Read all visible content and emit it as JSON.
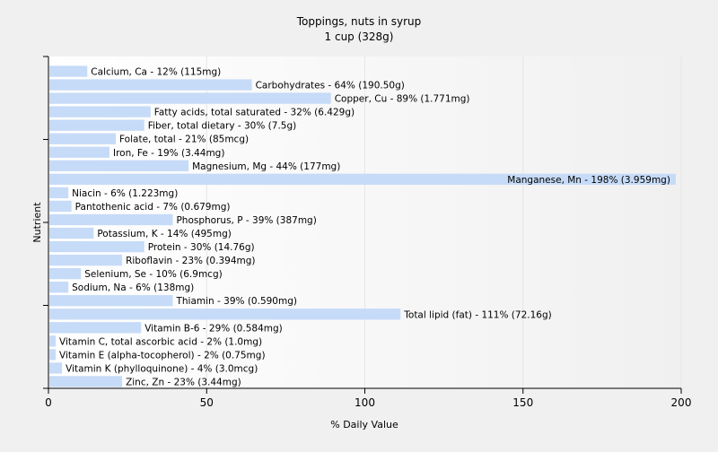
{
  "colors": {
    "page_background": "#f0f0f0",
    "plot_background": "#ffffff",
    "bar": "#c6dbf7",
    "axis": "#000000",
    "grid": "#e6e6e6"
  },
  "chart_data": {
    "type": "bar",
    "orientation": "horizontal",
    "title": "Toppings, nuts in syrup",
    "subtitle": "1 cup (328g)",
    "xlabel": "% Daily Value",
    "ylabel": "Nutrient",
    "xlim": [
      0,
      200
    ],
    "xticks": [
      0,
      50,
      100,
      150,
      200
    ],
    "grid": "vertical-gradient",
    "categories": [
      "Calcium, Ca",
      "Carbohydrates",
      "Copper, Cu",
      "Fatty acids, total saturated",
      "Fiber, total dietary",
      "Folate, total",
      "Iron, Fe",
      "Magnesium, Mg",
      "Manganese, Mn",
      "Niacin",
      "Pantothenic acid",
      "Phosphorus, P",
      "Potassium, K",
      "Protein",
      "Riboflavin",
      "Selenium, Se",
      "Sodium, Na",
      "Thiamin",
      "Total lipid (fat)",
      "Vitamin B-6",
      "Vitamin C, total ascorbic acid",
      "Vitamin E (alpha-tocopherol)",
      "Vitamin K (phylloquinone)",
      "Zinc, Zn"
    ],
    "values": [
      12,
      64,
      89,
      32,
      30,
      21,
      19,
      44,
      198,
      6,
      7,
      39,
      14,
      30,
      23,
      10,
      6,
      39,
      111,
      29,
      2,
      2,
      4,
      23
    ],
    "labels": [
      "Calcium, Ca - 12% (115mg)",
      "Carbohydrates - 64% (190.50g)",
      "Copper, Cu - 89% (1.771mg)",
      "Fatty acids, total saturated - 32% (6.429g)",
      "Fiber, total dietary - 30% (7.5g)",
      "Folate, total - 21% (85mcg)",
      "Iron, Fe - 19% (3.44mg)",
      "Magnesium, Mg - 44% (177mg)",
      "Manganese, Mn - 198% (3.959mg)",
      "Niacin - 6% (1.223mg)",
      "Pantothenic acid - 7% (0.679mg)",
      "Phosphorus, P - 39% (387mg)",
      "Potassium, K - 14% (495mg)",
      "Protein - 30% (14.76g)",
      "Riboflavin - 23% (0.394mg)",
      "Selenium, Se - 10% (6.9mcg)",
      "Sodium, Na - 6% (138mg)",
      "Thiamin - 39% (0.590mg)",
      "Total lipid (fat) - 111% (72.16g)",
      "Vitamin B-6 - 29% (0.584mg)",
      "Vitamin C, total ascorbic acid - 2% (1.0mg)",
      "Vitamin E (alpha-tocopherol) - 2% (0.75mg)",
      "Vitamin K (phylloquinone) - 4% (3.0mcg)",
      "Zinc, Zn - 23% (3.44mg)"
    ]
  }
}
